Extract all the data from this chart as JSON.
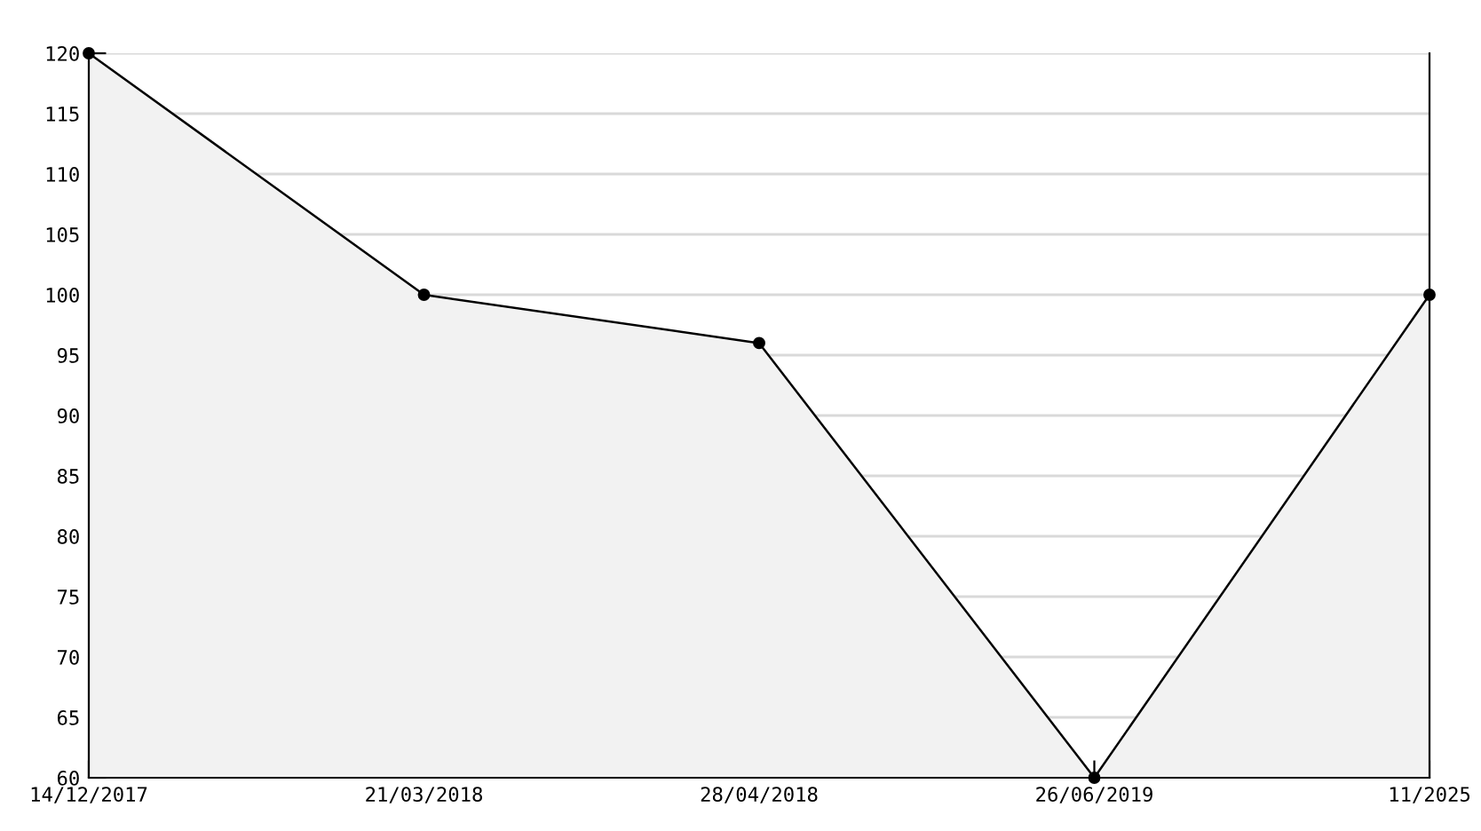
{
  "chart_data": {
    "type": "area",
    "categories": [
      "14/12/2017",
      "21/03/2018",
      "28/04/2018",
      "26/06/2019",
      "11/2025"
    ],
    "series": [
      {
        "color": "#000000",
        "values": [
          120,
          100,
          96,
          60,
          100
        ]
      }
    ],
    "ylim": [
      60,
      120
    ],
    "yticks": [
      60,
      65,
      70,
      75,
      80,
      85,
      90,
      95,
      100,
      105,
      110,
      115,
      120
    ],
    "grid": "y",
    "marker": "circle",
    "line_style": "solid",
    "legend": false
  }
}
